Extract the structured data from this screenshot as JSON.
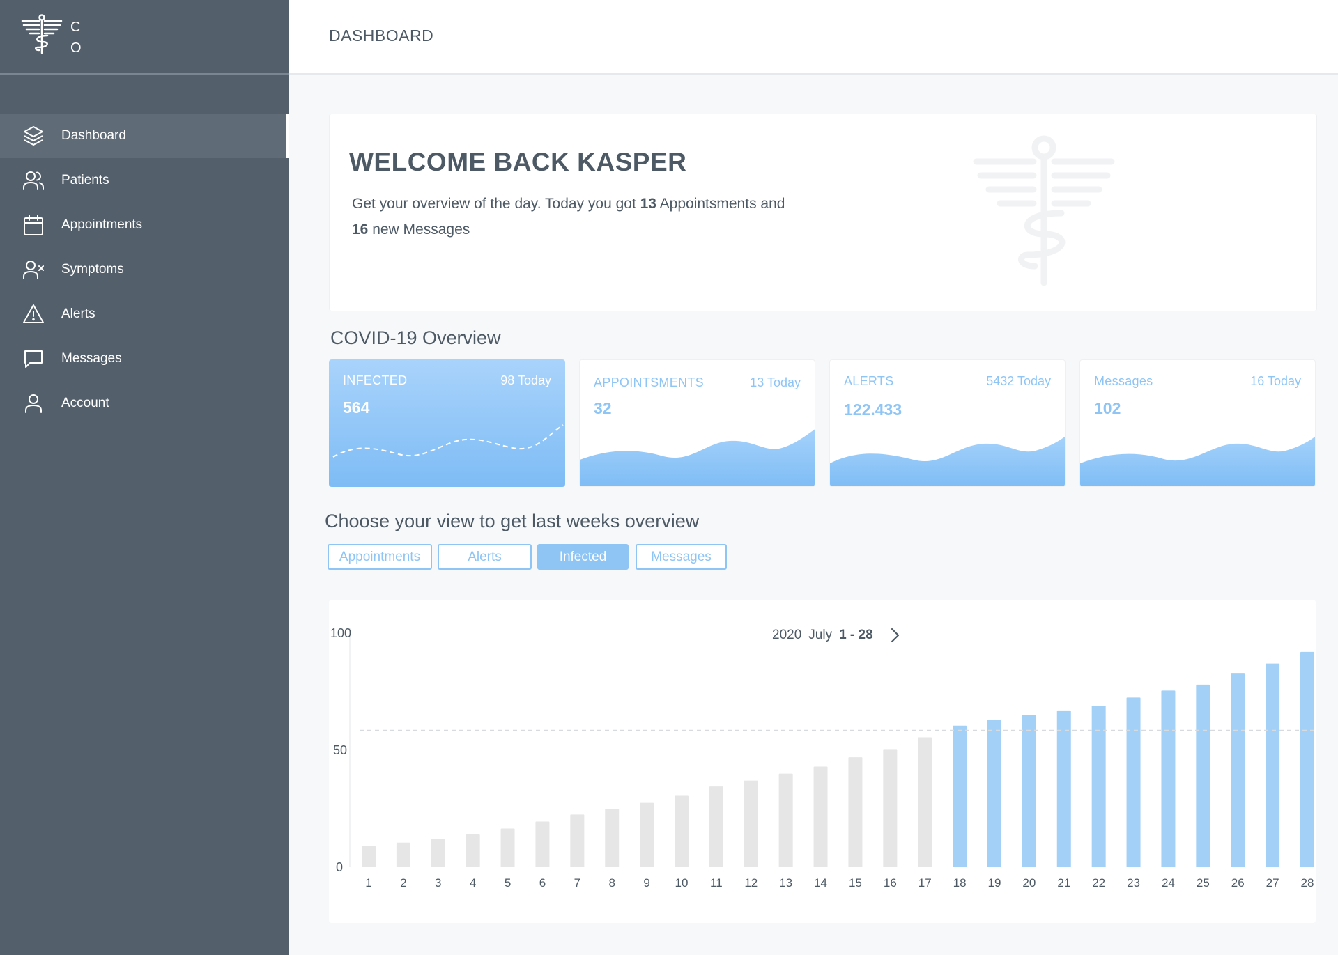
{
  "brand": {
    "logo_letters": [
      "C",
      "O"
    ]
  },
  "header": {
    "title": "DASHBOARD"
  },
  "sidebar": {
    "items": [
      {
        "label": "Dashboard",
        "icon": "layers-icon"
      },
      {
        "label": "Patients",
        "icon": "users-icon"
      },
      {
        "label": "Appointments",
        "icon": "calendar-icon"
      },
      {
        "label": "Symptoms",
        "icon": "user-x-icon"
      },
      {
        "label": "Alerts",
        "icon": "alert-triangle-icon"
      },
      {
        "label": "Messages",
        "icon": "message-icon"
      },
      {
        "label": "Account",
        "icon": "user-icon"
      }
    ],
    "active_index": 0
  },
  "welcome": {
    "title": "WELCOME BACK KASPER",
    "line1_prefix": "Get your overview of the day. Today you got ",
    "appointments_count": "13",
    "line1_suffix": " Appointsments and",
    "messages_count": "16",
    "line2_suffix": " new Messages"
  },
  "overview": {
    "title": "COVID-19 Overview",
    "cards": [
      {
        "label": "INFECTED",
        "today": "98 Today",
        "value": "564"
      },
      {
        "label": "APPOINTSMENTS",
        "today": "13 Today",
        "value": "32"
      },
      {
        "label": "ALERTS",
        "today": "5432 Today",
        "value": "122.433"
      },
      {
        "label": "Messages",
        "today": "16 Today",
        "value": "102"
      }
    ]
  },
  "views": {
    "title": "Choose your view to get last weeks overview",
    "buttons": [
      "Appointments",
      "Alerts",
      "Infected",
      "Messages"
    ],
    "active": "Infected"
  },
  "colors": {
    "sidebar": "#535f6b",
    "accent": "#8ec5f5",
    "bar_highlight": "#a2d0f6",
    "bar_muted": "#e6e6e6"
  },
  "chart_data": {
    "type": "bar",
    "period": {
      "year": "2020",
      "month": "July",
      "range": "1 - 28"
    },
    "categories": [
      "1",
      "2",
      "3",
      "4",
      "5",
      "6",
      "7",
      "8",
      "9",
      "10",
      "11",
      "12",
      "13",
      "14",
      "15",
      "16",
      "17",
      "18",
      "19",
      "20",
      "21",
      "22",
      "23",
      "24",
      "25",
      "26",
      "27",
      "28"
    ],
    "values": [
      9,
      10.5,
      12,
      14,
      16.5,
      19.5,
      22.5,
      25,
      27.5,
      30.5,
      34.5,
      37,
      40,
      43,
      47,
      50.5,
      55.5,
      60.5,
      63,
      65,
      67,
      69,
      72.5,
      75.5,
      78,
      83,
      87,
      92
    ],
    "highlight_from": "18",
    "threshold": 58.5,
    "ylim": [
      0,
      100
    ],
    "yticks": [
      "0",
      "50",
      "100"
    ],
    "xlabel": "",
    "ylabel": ""
  }
}
